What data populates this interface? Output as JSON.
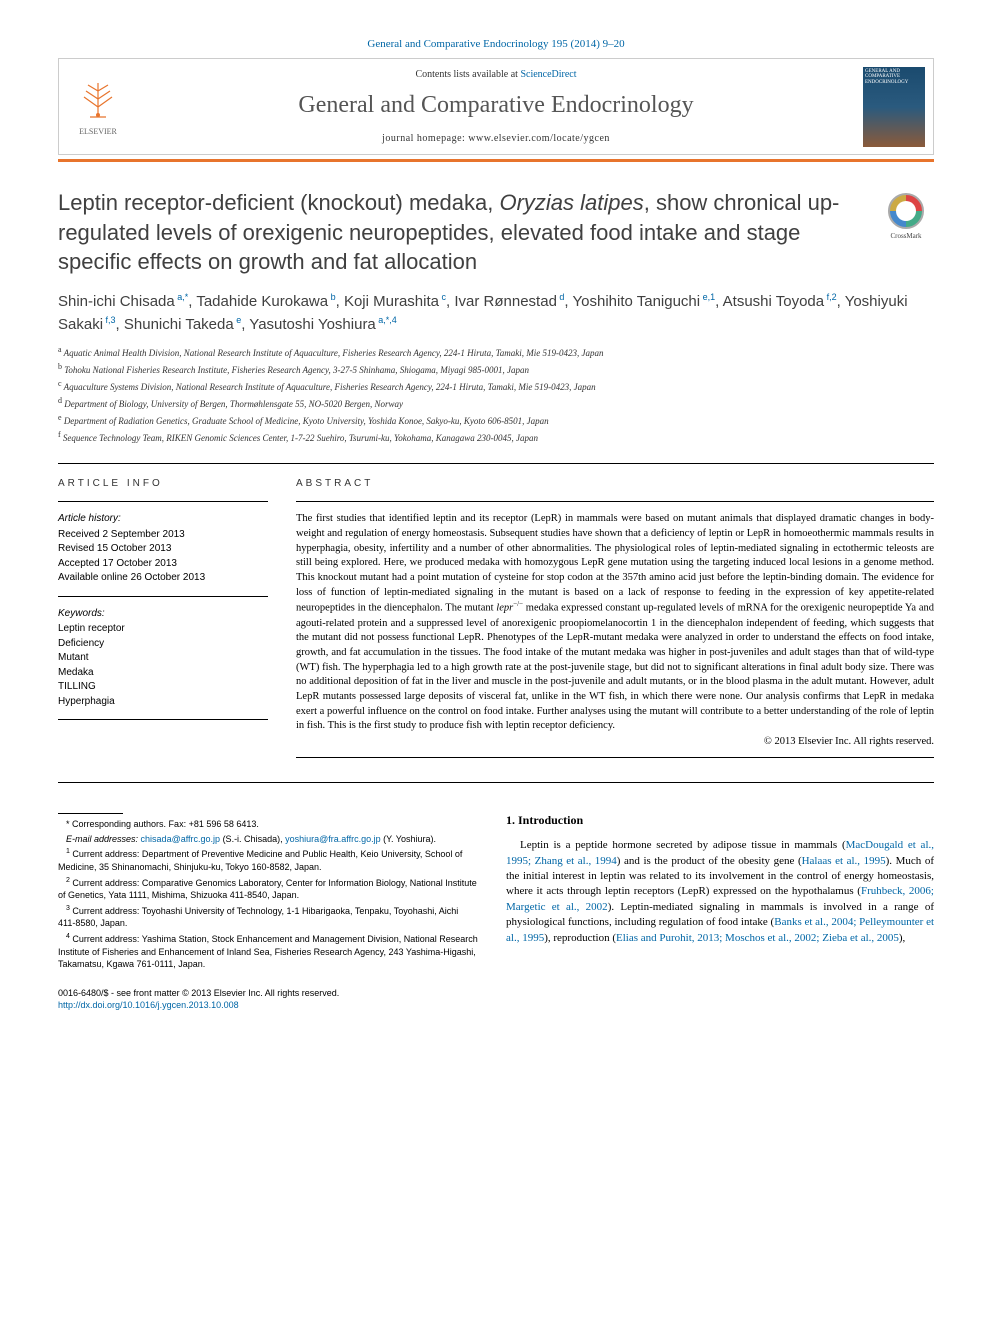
{
  "citation": "General and Comparative Endocrinology 195 (2014) 9–20",
  "header": {
    "contents_prefix": "Contents lists available at ",
    "contents_link": "ScienceDirect",
    "journal_title": "General and Comparative Endocrinology",
    "homepage_label": "journal homepage: www.elsevier.com/locate/ygcen",
    "publisher_label": "ELSEVIER",
    "cover_title": "GENERAL AND COMPARATIVE ENDOCRINOLOGY"
  },
  "crossmark_label": "CrossMark",
  "article": {
    "title_pre": "Leptin receptor-deficient (knockout) medaka, ",
    "title_italic": "Oryzias latipes",
    "title_post": ", show chronical up-regulated levels of orexigenic neuropeptides, elevated food intake and stage specific effects on growth and fat allocation"
  },
  "authors": [
    {
      "name": "Shin-ichi Chisada",
      "sup": "a,*"
    },
    {
      "name": "Tadahide Kurokawa",
      "sup": "b"
    },
    {
      "name": "Koji Murashita",
      "sup": "c"
    },
    {
      "name": "Ivar Rønnestad",
      "sup": "d"
    },
    {
      "name": "Yoshihito Taniguchi",
      "sup": "e,1"
    },
    {
      "name": "Atsushi Toyoda",
      "sup": "f,2"
    },
    {
      "name": "Yoshiyuki Sakaki",
      "sup": "f,3"
    },
    {
      "name": "Shunichi Takeda",
      "sup": "e"
    },
    {
      "name": "Yasutoshi Yoshiura",
      "sup": "a,*,4"
    }
  ],
  "affiliations": [
    {
      "key": "a",
      "text": "Aquatic Animal Health Division, National Research Institute of Aquaculture, Fisheries Research Agency, 224-1 Hiruta, Tamaki, Mie 519-0423, Japan"
    },
    {
      "key": "b",
      "text": "Tohoku National Fisheries Research Institute, Fisheries Research Agency, 3-27-5 Shinhama, Shiogama, Miyagi 985-0001, Japan"
    },
    {
      "key": "c",
      "text": "Aquaculture Systems Division, National Research Institute of Aquaculture, Fisheries Research Agency, 224-1 Hiruta, Tamaki, Mie 519-0423, Japan"
    },
    {
      "key": "d",
      "text": "Department of Biology, University of Bergen, Thormøhlensgate 55, NO-5020 Bergen, Norway"
    },
    {
      "key": "e",
      "text": "Department of Radiation Genetics, Graduate School of Medicine, Kyoto University, Yoshida Konoe, Sakyo-ku, Kyoto 606-8501, Japan"
    },
    {
      "key": "f",
      "text": "Sequence Technology Team, RIKEN Genomic Sciences Center, 1-7-22 Suehiro, Tsurumi-ku, Yokohama, Kanagawa 230-0045, Japan"
    }
  ],
  "article_info": {
    "label": "article info",
    "history_heading": "Article history:",
    "received": "Received 2 September 2013",
    "revised": "Revised 15 October 2013",
    "accepted": "Accepted 17 October 2013",
    "online": "Available online 26 October 2013",
    "keywords_heading": "Keywords:",
    "keywords": [
      "Leptin receptor",
      "Deficiency",
      "Mutant",
      "Medaka",
      "TILLING",
      "Hyperphagia"
    ]
  },
  "abstract": {
    "label": "abstract",
    "text_parts": [
      "The first studies that identified leptin and its receptor (LepR) in mammals were based on mutant animals that displayed dramatic changes in body-weight and regulation of energy homeostasis. Subsequent studies have shown that a deficiency of leptin or LepR in homoeothermic mammals results in hyperphagia, obesity, infertility and a number of other abnormalities. The physiological roles of leptin-mediated signaling in ectothermic teleosts are still being explored. Here, we produced medaka with homozygous LepR gene mutation using the targeting induced local lesions in a genome method. This knockout mutant had a point mutation of cysteine for stop codon at the 357th amino acid just before the leptin-binding domain. The evidence for loss of function of leptin-mediated signaling in the mutant is based on a lack of response to feeding in the expression of key appetite-related neuropeptides in the diencephalon. The mutant ",
      "lepr",
      "−/−",
      " medaka expressed constant up-regulated levels of mRNA for the orexigenic neuropeptide Ya and agouti-related protein and a suppressed level of anorexigenic proopiomelanocortin 1 in the diencephalon independent of feeding, which suggests that the mutant did not possess functional LepR. Phenotypes of the LepR-mutant medaka were analyzed in order to understand the effects on food intake, growth, and fat accumulation in the tissues. The food intake of the mutant medaka was higher in post-juveniles and adult stages than that of wild-type (WT) fish. The hyperphagia led to a high growth rate at the post-juvenile stage, but did not to significant alterations in final adult body size. There was no additional deposition of fat in the liver and muscle in the post-juvenile and adult mutants, or in the blood plasma in the adult mutant. However, adult LepR mutants possessed large deposits of visceral fat, unlike in the WT fish, in which there were none. Our analysis confirms that LepR in medaka exert a powerful influence on the control on food intake. Further analyses using the mutant will contribute to a better understanding of the role of leptin in fish. This is the first study to produce fish with leptin receptor deficiency."
    ],
    "copyright": "© 2013 Elsevier Inc. All rights reserved."
  },
  "footnotes": {
    "corr": "* Corresponding authors. Fax: +81 596 58 6413.",
    "email_label": "E-mail addresses:",
    "email1": "chisada@affrc.go.jp",
    "email1_name": " (S.-i. Chisada), ",
    "email2": "yoshiura@fra.affrc.go.jp",
    "email2_name": " (Y. Yoshiura).",
    "fn1": " Current address: Department of Preventive Medicine and Public Health, Keio University, School of Medicine, 35 Shinanomachi, Shinjuku-ku, Tokyo 160-8582, Japan.",
    "fn2": " Current address: Comparative Genomics Laboratory, Center for Information Biology, National Institute of Genetics, Yata 1111, Mishima, Shizuoka 411-8540, Japan.",
    "fn3": " Current address: Toyohashi University of Technology, 1-1 Hibarigaoka, Tenpaku, Toyohashi, Aichi 411-8580, Japan.",
    "fn4": " Current address: Yashima Station, Stock Enhancement and Management Division, National Research Institute of Fisheries and Enhancement of Inland Sea, Fisheries Research Agency, 243 Yashima-Higashi, Takamatsu, Kgawa 761-0111, Japan."
  },
  "intro": {
    "heading": "1. Introduction",
    "text_parts": [
      "Leptin is a peptide hormone secreted by adipose tissue in mammals (",
      "MacDougald et al., 1995; Zhang et al., 1994",
      ") and is the product of the obesity gene (",
      "Halaas et al., 1995",
      "). Much of the initial interest in leptin was related to its involvement in the control of energy homeostasis, where it acts through leptin receptors (LepR) expressed on the hypothalamus (",
      "Fruhbeck, 2006; Margetic et al., 2002",
      "). Leptin-mediated signaling in mammals is involved in a range of physiological functions, including regulation of food intake (",
      "Banks et al., 2004; Pelleymounter et al., 1995",
      "), reproduction (",
      "Elias and Purohit, 2013; Moschos et al., 2002; Zieba et al., 2005",
      "),"
    ]
  },
  "doi": {
    "line1": "0016-6480/$ - see front matter © 2013 Elsevier Inc. All rights reserved.",
    "line2": "http://dx.doi.org/10.1016/j.ygcen.2013.10.008"
  },
  "colors": {
    "link": "#0066a6",
    "accent": "#e8742c",
    "text": "#000000",
    "title_gray": "#404040"
  }
}
